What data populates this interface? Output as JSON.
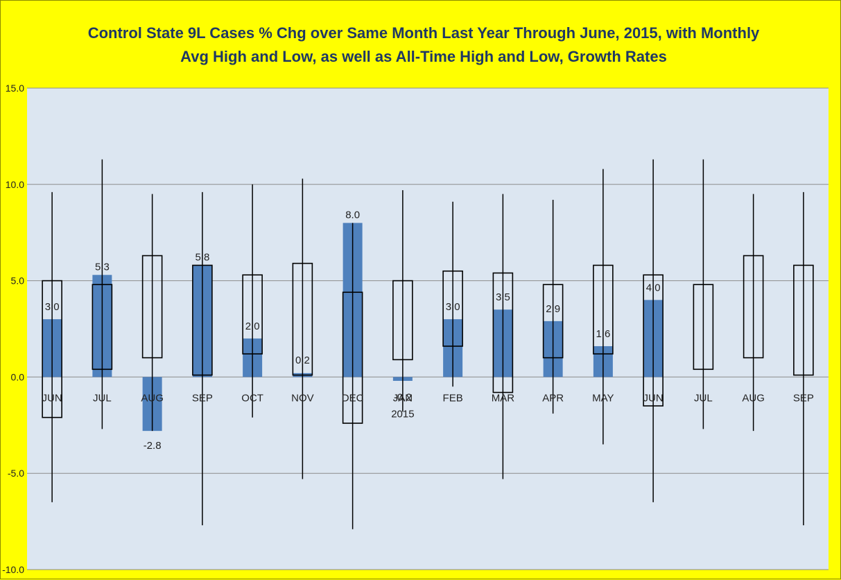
{
  "chart_data": {
    "type": "bar",
    "title": "Control State 9L Cases % Chg over Same Month Last Year Through June, 2015, with Monthly Avg High and Low, as well as All-Time High and Low,  Growth Rates",
    "categories": [
      "JUN",
      "JUL",
      "AUG",
      "SEP",
      "OCT",
      "NOV",
      "DEC",
      "JAN\n2015",
      "FEB",
      "MAR",
      "APR",
      "MAY",
      "JUN",
      "JUL",
      "AUG",
      "SEP"
    ],
    "ylim": [
      -10,
      15
    ],
    "yticks": [
      "-10.0",
      "-5.0",
      "0.0",
      "5.0",
      "10.0",
      "15.0"
    ],
    "ytick_values": [
      -10,
      -5,
      0,
      5,
      10,
      15
    ],
    "grid": true,
    "bar_color": "#4F81BD",
    "plot_bg": "#DCE6F1",
    "page_bg": "#FFFF00",
    "title_color": "#1F3864",
    "series": [
      {
        "kind": "bar",
        "values": [
          3.0,
          5.3,
          -2.8,
          5.8,
          2.0,
          0.2,
          8.0,
          -0.2,
          3.0,
          3.5,
          2.9,
          1.6,
          4.0,
          null,
          null,
          null
        ],
        "labels": [
          "3.0",
          "5.3",
          "-2.8",
          "5.8",
          "2.0",
          "0.2",
          "8.0",
          "-0.2",
          "3.0",
          "3.5",
          "2.9",
          "1.6",
          "4.0",
          "",
          "",
          ""
        ]
      },
      {
        "kind": "avg_high_low_box",
        "high": [
          5.0,
          4.8,
          6.3,
          5.8,
          5.3,
          5.9,
          4.4,
          5.0,
          5.5,
          5.4,
          4.8,
          5.8,
          5.3,
          4.8,
          6.3,
          5.8
        ],
        "low": [
          -2.1,
          0.4,
          1.0,
          0.1,
          1.2,
          0.1,
          -2.4,
          0.9,
          1.6,
          -0.8,
          1.0,
          1.2,
          -1.5,
          0.4,
          1.0,
          0.1
        ]
      },
      {
        "kind": "all_time_high_low",
        "high": [
          9.6,
          11.3,
          9.5,
          9.6,
          10.0,
          10.3,
          8.0,
          9.7,
          9.1,
          9.5,
          9.2,
          10.8,
          11.3,
          11.3,
          9.5,
          9.6
        ],
        "low": [
          -6.5,
          -2.7,
          -2.8,
          -7.7,
          -2.1,
          -5.3,
          -7.9,
          -1.8,
          -0.5,
          -5.3,
          -1.9,
          -3.5,
          -6.5,
          -2.7,
          -2.8,
          -7.7
        ]
      }
    ]
  }
}
